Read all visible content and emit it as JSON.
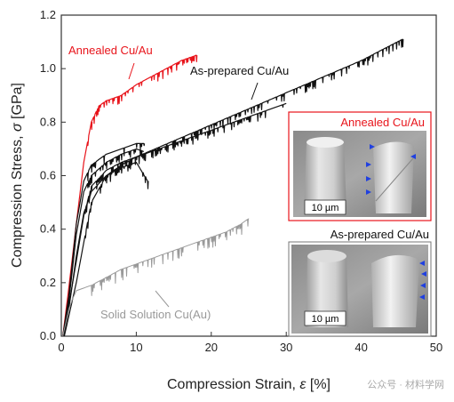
{
  "chart_data": {
    "type": "line",
    "xlabel_prefix": "Compression Strain, ",
    "xlabel_symbol": "ε",
    "xlabel_unit": " [%]",
    "ylabel_prefix": "Compression Stress, ",
    "ylabel_symbol": "σ",
    "ylabel_unit": " [GPa]",
    "xlim": [
      0,
      50
    ],
    "ylim": [
      0.0,
      1.2
    ],
    "xticks": [
      "0",
      "10",
      "20",
      "30",
      "40",
      "50"
    ],
    "yticks": [
      "0.0",
      "0.2",
      "0.4",
      "0.6",
      "0.8",
      "1.0",
      "1.2"
    ],
    "series": [
      {
        "name": "Annealed Cu/Au",
        "color": "#e8141b",
        "curves": [
          {
            "x": [
              0.2,
              1,
              2,
              3,
              4,
              5,
              6,
              7,
              8,
              9,
              10,
              12,
              14,
              16,
              18
            ],
            "y": [
              0.0,
              0.18,
              0.42,
              0.65,
              0.8,
              0.86,
              0.88,
              0.89,
              0.9,
              0.92,
              0.94,
              0.97,
              1.0,
              1.03,
              1.05
            ]
          }
        ]
      },
      {
        "name": "As-prepared Cu/Au",
        "color": "#111111",
        "curves": [
          {
            "x": [
              0.2,
              1,
              2,
              3,
              4,
              6,
              8,
              10,
              11
            ],
            "y": [
              0.0,
              0.15,
              0.42,
              0.58,
              0.64,
              0.68,
              0.7,
              0.72,
              0.72
            ]
          },
          {
            "x": [
              0.2,
              1,
              2,
              3,
              4,
              6,
              8,
              10,
              11
            ],
            "y": [
              0.0,
              0.13,
              0.38,
              0.54,
              0.6,
              0.65,
              0.68,
              0.7,
              0.69
            ]
          },
          {
            "x": [
              0.3,
              1,
              2,
              3,
              4,
              6,
              8,
              10,
              11.5
            ],
            "y": [
              0.0,
              0.1,
              0.3,
              0.46,
              0.54,
              0.6,
              0.63,
              0.65,
              0.58
            ]
          },
          {
            "x": [
              0.3,
              2,
              3,
              4,
              6,
              8,
              10,
              15,
              20,
              25,
              30
            ],
            "y": [
              0.0,
              0.28,
              0.45,
              0.56,
              0.62,
              0.65,
              0.67,
              0.72,
              0.77,
              0.82,
              0.87
            ]
          },
          {
            "x": [
              0.4,
              2,
              4,
              6,
              8,
              10,
              15,
              20,
              25,
              30,
              35,
              40,
              45.5
            ],
            "y": [
              0.0,
              0.2,
              0.5,
              0.6,
              0.64,
              0.67,
              0.73,
              0.79,
              0.85,
              0.91,
              0.97,
              1.03,
              1.11
            ]
          }
        ]
      },
      {
        "name": "Solid Solution Cu(Au)",
        "color": "#999999",
        "curves": [
          {
            "x": [
              0.2,
              1,
              1.5,
              2,
              4,
              6,
              8,
              10,
              12,
              14,
              16,
              18,
              20,
              22,
              24,
              25
            ],
            "y": [
              0.0,
              0.1,
              0.14,
              0.17,
              0.19,
              0.22,
              0.25,
              0.27,
              0.29,
              0.31,
              0.33,
              0.35,
              0.37,
              0.39,
              0.42,
              0.44
            ]
          }
        ]
      }
    ],
    "annotations": [
      {
        "text": "Annealed Cu/Au",
        "color": "#e8141b"
      },
      {
        "text": "As-prepared Cu/Au",
        "color": "#111111"
      },
      {
        "text": "Solid Solution Cu(Au)",
        "color": "#999999"
      }
    ]
  },
  "insets": [
    {
      "title": "Annealed Cu/Au",
      "title_color": "#e8141b",
      "border_color": "#e8141b",
      "scale_bar": "10 µm"
    },
    {
      "title": "As-prepared Cu/Au",
      "title_color": "#111111",
      "border_color": "#777777",
      "scale_bar": "10 µm"
    }
  ],
  "watermark": "公众号 · 材料学网"
}
